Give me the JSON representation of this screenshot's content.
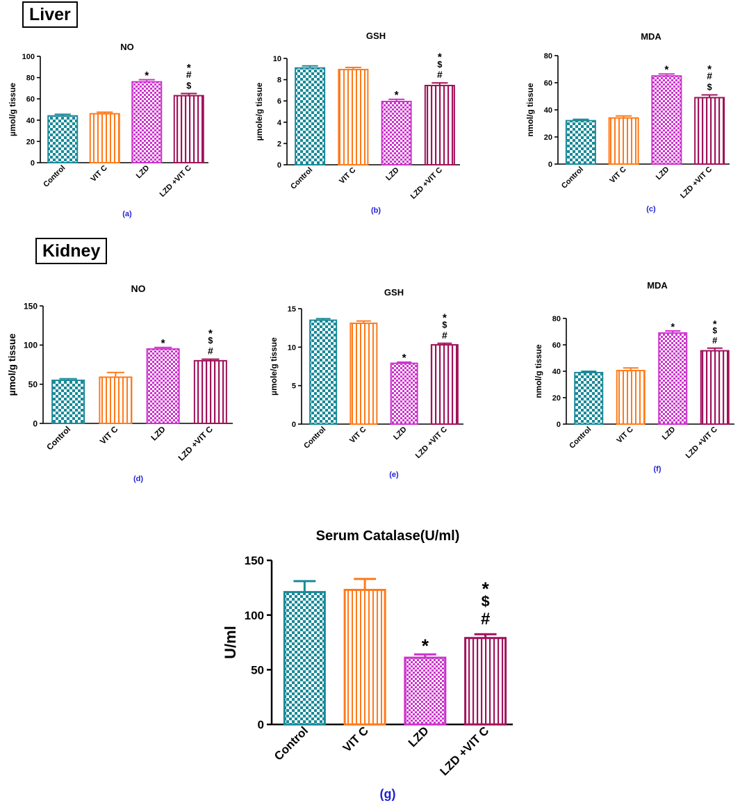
{
  "sections": {
    "liver": "Liver",
    "kidney": "Kidney"
  },
  "colors": {
    "control": "#1a8a99",
    "vitc": "#ff7a1a",
    "lzd": "#cc33cc",
    "lzd_vitc": "#a0125a",
    "panel_label": "#1f1fd6"
  },
  "chart_data": [
    {
      "id": "a",
      "type": "bar",
      "title": "NO",
      "ylabel": "µmol/g tissue",
      "panel": "(a)",
      "ylim": [
        0,
        100
      ],
      "yticks": [
        0,
        20,
        40,
        60,
        80,
        100
      ],
      "categories": [
        "Control",
        "VIT C",
        "LZD",
        "LZD +VIT C"
      ],
      "values": [
        44,
        46,
        76,
        63
      ],
      "errors": [
        1.5,
        1.5,
        2,
        2
      ],
      "annotations": [
        [],
        [],
        [
          "*"
        ],
        [
          "*",
          "#",
          "$"
        ]
      ]
    },
    {
      "id": "b",
      "type": "bar",
      "title": "GSH",
      "ylabel": "µmole/g tissue",
      "panel": "(b)",
      "ylim": [
        0,
        10
      ],
      "yticks": [
        0,
        2,
        4,
        6,
        8,
        10
      ],
      "categories": [
        "Control",
        "VIT C",
        "LZD",
        "LZD +VIT C"
      ],
      "values": [
        9.1,
        8.95,
        5.95,
        7.45
      ],
      "errors": [
        0.2,
        0.2,
        0.2,
        0.25
      ],
      "annotations": [
        [],
        [],
        [
          "*"
        ],
        [
          "*",
          "$",
          "#"
        ]
      ]
    },
    {
      "id": "c",
      "type": "bar",
      "title": "MDA",
      "ylabel": "nmol/g tissue",
      "panel": "(c)",
      "ylim": [
        0,
        80
      ],
      "yticks": [
        0,
        20,
        40,
        60,
        80
      ],
      "categories": [
        "Control",
        "VIT C",
        "LZD",
        "LZD +VIT C"
      ],
      "values": [
        32,
        34,
        65,
        49
      ],
      "errors": [
        1,
        1.5,
        1.5,
        2
      ],
      "annotations": [
        [],
        [],
        [
          "*"
        ],
        [
          "*",
          "#",
          "$"
        ]
      ]
    },
    {
      "id": "d",
      "type": "bar",
      "title": "NO",
      "ylabel": "µmol/g tissue",
      "panel": "(d)",
      "ylim": [
        0,
        150
      ],
      "yticks": [
        0,
        50,
        100,
        150
      ],
      "categories": [
        "Control",
        "VIT C",
        "LZD",
        "LZD +VIT C"
      ],
      "values": [
        55,
        59,
        95,
        80
      ],
      "errors": [
        2,
        6,
        2,
        2
      ],
      "annotations": [
        [],
        [],
        [
          "*"
        ],
        [
          "*",
          "$",
          "#"
        ]
      ]
    },
    {
      "id": "e",
      "type": "bar",
      "title": "GSH",
      "ylabel": "µmole/g tissue",
      "panel": "(e)",
      "ylim": [
        0,
        15
      ],
      "yticks": [
        0,
        5,
        10,
        15
      ],
      "categories": [
        "Control",
        "VIT C",
        "LZD",
        "LZD +VIT C"
      ],
      "values": [
        13.5,
        13.1,
        7.9,
        10.3
      ],
      "errors": [
        0.2,
        0.3,
        0.15,
        0.2
      ],
      "annotations": [
        [],
        [],
        [
          "*"
        ],
        [
          "*",
          "$",
          "#"
        ]
      ]
    },
    {
      "id": "f",
      "type": "bar",
      "title": "MDA",
      "ylabel": "nmol/g tissue",
      "panel": "(f)",
      "ylim": [
        0,
        80
      ],
      "yticks": [
        0,
        20,
        40,
        60,
        80
      ],
      "categories": [
        "Control",
        "VIT C",
        "LZD",
        "LZD +VIT C"
      ],
      "values": [
        39,
        40.5,
        69,
        55.5
      ],
      "errors": [
        1,
        2,
        1.5,
        2
      ],
      "annotations": [
        [],
        [],
        [
          "*"
        ],
        [
          "*",
          "$",
          "#"
        ]
      ]
    },
    {
      "id": "g",
      "type": "bar",
      "title": "Serum Catalase(U/ml)",
      "ylabel": "U/ml",
      "panel": "(g)",
      "ylim": [
        0,
        150
      ],
      "yticks": [
        0,
        50,
        100,
        150
      ],
      "categories": [
        "Control",
        "VIT C",
        "LZD",
        "LZD +VIT C"
      ],
      "values": [
        121,
        123,
        61,
        79
      ],
      "errors": [
        10,
        10,
        3,
        3.5
      ],
      "annotations": [
        [],
        [],
        [
          "*"
        ],
        [
          "*",
          "$",
          "#"
        ]
      ]
    }
  ]
}
